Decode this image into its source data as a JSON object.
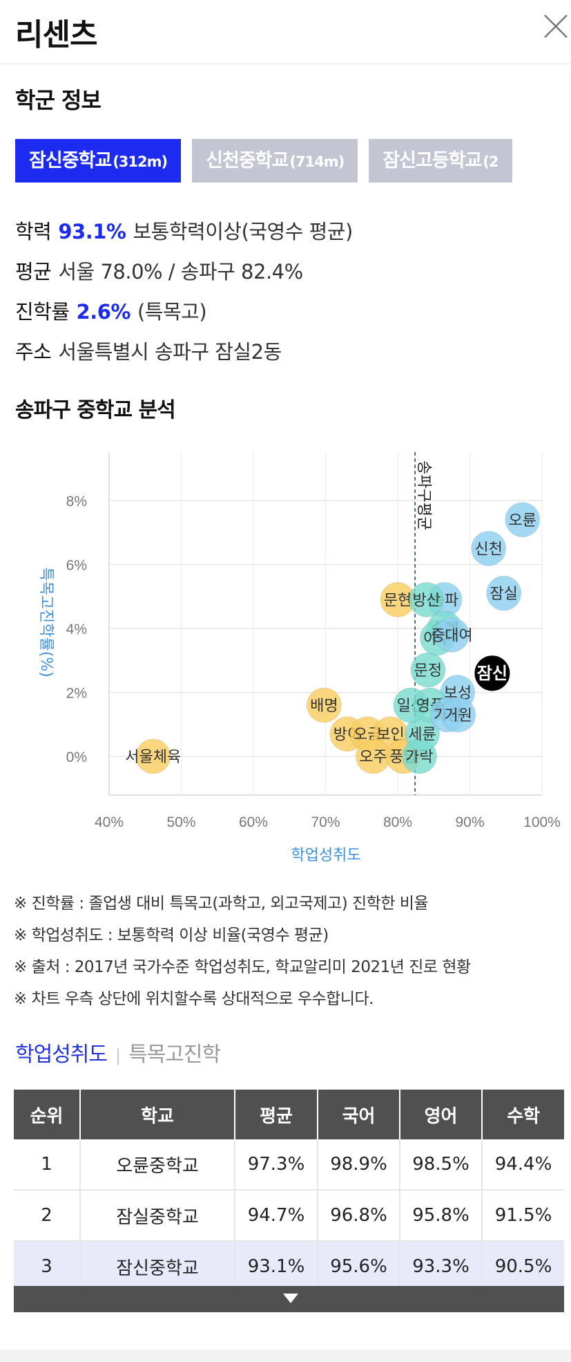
{
  "header": {
    "title": "리센츠"
  },
  "school_section": {
    "title": "학군 정보",
    "tabs": [
      {
        "name": "잠신중학교",
        "distance": "(312m)",
        "active": true
      },
      {
        "name": "신천중학교",
        "distance": "(714m)",
        "active": false
      },
      {
        "name": "잠신고등학교",
        "distance": "(2",
        "active": false
      }
    ],
    "info": {
      "achievement_label": "학력",
      "achievement_value": "93.1%",
      "achievement_desc": "보통학력이상(국영수 평균)",
      "average_label": "평균",
      "average_value": "서울 78.0% / 송파구 82.4%",
      "advance_label": "진학률",
      "advance_value": "2.6%",
      "advance_desc": "(특목고)",
      "address_label": "주소",
      "address_value": "서울특별시 송파구 잠실2동"
    }
  },
  "analysis": {
    "title": "송파구 중학교 분석"
  },
  "chart_data": {
    "type": "scatter",
    "xlabel": "학업성취도",
    "ylabel": "특목고진학률(%)",
    "xlim": [
      40,
      100
    ],
    "ylim": [
      -0.8,
      10
    ],
    "x_ticks": [
      "40%",
      "50%",
      "60%",
      "70%",
      "80%",
      "90%",
      "100%"
    ],
    "y_ticks": [
      "0%",
      "2%",
      "4%",
      "6%",
      "8%"
    ],
    "reference_line": {
      "x": 82.4,
      "label": "송파구평균"
    },
    "colors": {
      "above": "#8fd0ef",
      "mid": "#7bdcd0",
      "below": "#f9cd62",
      "selected": "#000000"
    },
    "points": [
      {
        "label": "오륜",
        "x": 97.3,
        "y": 7.4,
        "group": "above"
      },
      {
        "label": "신천",
        "x": 92.6,
        "y": 6.5,
        "group": "above"
      },
      {
        "label": "잠실",
        "x": 94.7,
        "y": 5.1,
        "group": "above"
      },
      {
        "label": "송파",
        "x": 86.5,
        "y": 4.9,
        "group": "above"
      },
      {
        "label": "잠신",
        "x": 93.1,
        "y": 2.6,
        "group": "selected"
      },
      {
        "label": "보성",
        "x": 88.3,
        "y": 2.0,
        "group": "above"
      },
      {
        "label": "배명",
        "x": 69.8,
        "y": 1.6,
        "group": "below"
      },
      {
        "label": "문현",
        "x": 80.0,
        "y": 4.9,
        "group": "below"
      },
      {
        "label": "문정",
        "x": 84.2,
        "y": 2.7,
        "group": "mid"
      },
      {
        "label": "서울체육",
        "x": 46.1,
        "y": 0.0,
        "group": "below"
      },
      {
        "label": "방이",
        "x": 73.0,
        "y": 0.7,
        "group": "below"
      },
      {
        "label": "오금",
        "x": 75.8,
        "y": 0.7,
        "group": "below"
      },
      {
        "label": "보인",
        "x": 79.0,
        "y": 0.7,
        "group": "below"
      },
      {
        "label": "오주",
        "x": 76.6,
        "y": 0.0,
        "group": "below"
      },
      {
        "label": "풍납",
        "x": 80.8,
        "y": 0.0,
        "group": "below"
      },
      {
        "label": "가락",
        "x": 83.0,
        "y": 0.0,
        "group": "mid"
      },
      {
        "label": "세륜",
        "x": 83.4,
        "y": 0.7,
        "group": "mid"
      },
      {
        "label": "일신",
        "x": 81.8,
        "y": 1.6,
        "group": "mid"
      },
      {
        "label": "영풍",
        "x": 84.5,
        "y": 1.6,
        "group": "mid"
      },
      {
        "label": "가원",
        "x": 86.9,
        "y": 1.3,
        "group": "above"
      },
      {
        "label": "거원",
        "x": 88.4,
        "y": 1.3,
        "group": "above"
      },
      {
        "label": "송례",
        "x": 86.5,
        "y": 4.0,
        "group": "mid"
      },
      {
        "label": "아주",
        "x": 85.5,
        "y": 3.7,
        "group": "mid"
      },
      {
        "label": "방산",
        "x": 84.0,
        "y": 4.9,
        "group": "mid"
      },
      {
        "label": "중대여",
        "x": 87.5,
        "y": 3.8,
        "group": "above"
      }
    ]
  },
  "notes": [
    "※ 진학률 : 졸업생 대비 특목고(과학고, 외고국제고) 진학한 비율",
    "※ 학업성취도 : 보통학력 이상 비율(국영수 평균)",
    "※ 출처 : 2017년 국가수준 학업성취도, 학교알리미 2021년 진로 현황",
    "※ 차트 우측 상단에 위치할수록 상대적으로 우수합니다."
  ],
  "subtabs": {
    "active": "학업성취도",
    "separator": "|",
    "other": "특목고진학"
  },
  "table": {
    "headers": [
      "순위",
      "학교",
      "평균",
      "국어",
      "영어",
      "수학"
    ],
    "rows": [
      [
        "1",
        "오륜중학교",
        "97.3%",
        "98.9%",
        "98.5%",
        "94.4%"
      ],
      [
        "2",
        "잠실중학교",
        "94.7%",
        "96.8%",
        "95.8%",
        "91.5%"
      ],
      [
        "3",
        "잠신중학교",
        "93.1%",
        "95.6%",
        "93.3%",
        "90.5%"
      ]
    ]
  }
}
